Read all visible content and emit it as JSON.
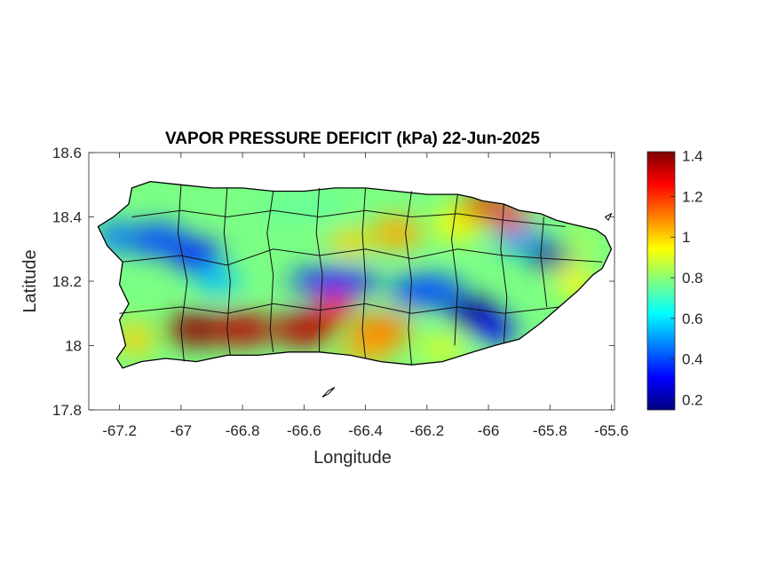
{
  "title": "VAPOR PRESSURE DEFICIT (kPa) 22-Jun-2025",
  "xlabel": "Longitude",
  "ylabel": "Latitude",
  "xlim": [
    -67.3,
    -65.59
  ],
  "ylim": [
    17.8,
    18.6
  ],
  "xticks": [
    {
      "value": -67.2,
      "label": "-67.2"
    },
    {
      "value": -67.0,
      "label": "-67"
    },
    {
      "value": -66.8,
      "label": "-66.8"
    },
    {
      "value": -66.6,
      "label": "-66.6"
    },
    {
      "value": -66.4,
      "label": "-66.4"
    },
    {
      "value": -66.2,
      "label": "-66.2"
    },
    {
      "value": -66.0,
      "label": "-66"
    },
    {
      "value": -65.8,
      "label": "-65.8"
    },
    {
      "value": -65.6,
      "label": "-65.6"
    }
  ],
  "yticks": [
    {
      "value": 18.6,
      "label": "18.6"
    },
    {
      "value": 18.4,
      "label": "18.4"
    },
    {
      "value": 18.2,
      "label": "18.2"
    },
    {
      "value": 18.0,
      "label": "18"
    },
    {
      "value": 17.8,
      "label": "17.8"
    }
  ],
  "colorbar": {
    "colormap": "jet",
    "range": [
      0.15,
      1.42
    ],
    "ticks": [
      {
        "value": 1.4,
        "label": "1.4"
      },
      {
        "value": 1.2,
        "label": "1.2"
      },
      {
        "value": 1.0,
        "label": "1"
      },
      {
        "value": 0.8,
        "label": "0.8"
      },
      {
        "value": 0.6,
        "label": "0.6"
      },
      {
        "value": 0.4,
        "label": "0.4"
      },
      {
        "value": 0.2,
        "label": "0.2"
      }
    ]
  },
  "map_data": {
    "region": "Puerto Rico",
    "background_value": 0.78,
    "coast": [
      [
        -67.27,
        18.37
      ],
      [
        -67.22,
        18.4
      ],
      [
        -67.17,
        18.44
      ],
      [
        -67.16,
        18.49
      ],
      [
        -67.1,
        18.51
      ],
      [
        -67.0,
        18.5
      ],
      [
        -66.9,
        18.49
      ],
      [
        -66.8,
        18.49
      ],
      [
        -66.7,
        18.48
      ],
      [
        -66.6,
        18.48
      ],
      [
        -66.5,
        18.49
      ],
      [
        -66.4,
        18.49
      ],
      [
        -66.3,
        18.48
      ],
      [
        -66.2,
        18.47
      ],
      [
        -66.1,
        18.47
      ],
      [
        -66.05,
        18.46
      ],
      [
        -66.02,
        18.45
      ],
      [
        -65.95,
        18.44
      ],
      [
        -65.9,
        18.42
      ],
      [
        -65.83,
        18.41
      ],
      [
        -65.78,
        18.39
      ],
      [
        -65.74,
        18.38
      ],
      [
        -65.65,
        18.36
      ],
      [
        -65.62,
        18.34
      ],
      [
        -65.6,
        18.3
      ],
      [
        -65.63,
        18.24
      ],
      [
        -65.66,
        18.22
      ],
      [
        -65.71,
        18.17
      ],
      [
        -65.77,
        18.12
      ],
      [
        -65.83,
        18.07
      ],
      [
        -65.9,
        18.02
      ],
      [
        -65.98,
        18.0
      ],
      [
        -66.05,
        17.98
      ],
      [
        -66.15,
        17.95
      ],
      [
        -66.25,
        17.94
      ],
      [
        -66.35,
        17.95
      ],
      [
        -66.45,
        17.97
      ],
      [
        -66.55,
        17.98
      ],
      [
        -66.65,
        17.98
      ],
      [
        -66.75,
        17.97
      ],
      [
        -66.85,
        17.97
      ],
      [
        -66.95,
        17.95
      ],
      [
        -67.05,
        17.96
      ],
      [
        -67.13,
        17.95
      ],
      [
        -67.19,
        17.93
      ],
      [
        -67.21,
        17.96
      ],
      [
        -67.18,
        18.0
      ],
      [
        -67.2,
        18.08
      ],
      [
        -67.17,
        18.13
      ],
      [
        -67.2,
        18.19
      ],
      [
        -67.19,
        18.26
      ],
      [
        -67.24,
        18.31
      ],
      [
        -67.27,
        18.37
      ]
    ],
    "islands": [
      [
        [
          -66.54,
          17.84
        ],
        [
          -66.52,
          17.86
        ],
        [
          -66.5,
          17.87
        ],
        [
          -66.52,
          17.85
        ]
      ],
      [
        [
          -65.62,
          18.4
        ],
        [
          -65.6,
          18.41
        ],
        [
          -65.61,
          18.39
        ]
      ]
    ],
    "municipal_boundaries": [
      [
        [
          -67.0,
          18.5
        ],
        [
          -67.01,
          18.35
        ],
        [
          -66.98,
          18.2
        ],
        [
          -67.0,
          18.05
        ],
        [
          -66.99,
          17.95
        ]
      ],
      [
        [
          -66.85,
          18.49
        ],
        [
          -66.86,
          18.35
        ],
        [
          -66.84,
          18.2
        ],
        [
          -66.85,
          18.05
        ],
        [
          -66.84,
          17.97
        ]
      ],
      [
        [
          -66.7,
          18.48
        ],
        [
          -66.72,
          18.35
        ],
        [
          -66.7,
          18.22
        ],
        [
          -66.71,
          18.05
        ],
        [
          -66.7,
          17.98
        ]
      ],
      [
        [
          -66.55,
          18.49
        ],
        [
          -66.56,
          18.35
        ],
        [
          -66.54,
          18.22
        ],
        [
          -66.55,
          18.05
        ],
        [
          -66.55,
          17.98
        ]
      ],
      [
        [
          -66.4,
          18.49
        ],
        [
          -66.41,
          18.35
        ],
        [
          -66.4,
          18.2
        ],
        [
          -66.41,
          18.05
        ],
        [
          -66.4,
          17.96
        ]
      ],
      [
        [
          -66.25,
          18.48
        ],
        [
          -66.27,
          18.35
        ],
        [
          -66.25,
          18.2
        ],
        [
          -66.26,
          18.05
        ],
        [
          -66.25,
          17.94
        ]
      ],
      [
        [
          -66.1,
          18.47
        ],
        [
          -66.12,
          18.33
        ],
        [
          -66.1,
          18.18
        ],
        [
          -66.11,
          18.0
        ]
      ],
      [
        [
          -65.95,
          18.44
        ],
        [
          -65.96,
          18.3
        ],
        [
          -65.94,
          18.15
        ],
        [
          -65.95,
          18.01
        ]
      ],
      [
        [
          -65.82,
          18.4
        ],
        [
          -65.83,
          18.28
        ],
        [
          -65.81,
          18.12
        ]
      ],
      [
        [
          -67.19,
          18.26
        ],
        [
          -67.0,
          18.28
        ],
        [
          -66.85,
          18.25
        ],
        [
          -66.7,
          18.3
        ],
        [
          -66.55,
          18.28
        ],
        [
          -66.4,
          18.3
        ],
        [
          -66.25,
          18.27
        ],
        [
          -66.1,
          18.3
        ],
        [
          -65.95,
          18.28
        ],
        [
          -65.8,
          18.27
        ],
        [
          -65.63,
          18.26
        ]
      ],
      [
        [
          -67.2,
          18.1
        ],
        [
          -67.0,
          18.12
        ],
        [
          -66.85,
          18.1
        ],
        [
          -66.7,
          18.13
        ],
        [
          -66.55,
          18.11
        ],
        [
          -66.4,
          18.13
        ],
        [
          -66.25,
          18.1
        ],
        [
          -66.1,
          18.12
        ],
        [
          -65.95,
          18.1
        ],
        [
          -65.77,
          18.12
        ]
      ],
      [
        [
          -67.16,
          18.4
        ],
        [
          -67.0,
          18.42
        ],
        [
          -66.85,
          18.4
        ],
        [
          -66.7,
          18.42
        ],
        [
          -66.55,
          18.4
        ],
        [
          -66.4,
          18.42
        ],
        [
          -66.25,
          18.4
        ],
        [
          -66.1,
          18.41
        ],
        [
          -65.95,
          18.39
        ],
        [
          -65.75,
          18.37
        ]
      ]
    ],
    "vpd_field": [
      {
        "lon": -67.22,
        "lat": 18.34,
        "value": 0.45,
        "rlon": 0.05,
        "rlat": 0.05
      },
      {
        "lon": -67.08,
        "lat": 18.33,
        "value": 0.4,
        "rlon": 0.1,
        "rlat": 0.05
      },
      {
        "lon": -66.95,
        "lat": 18.28,
        "value": 0.35,
        "rlon": 0.08,
        "rlat": 0.05
      },
      {
        "lon": -66.88,
        "lat": 18.2,
        "value": 0.55,
        "rlon": 0.07,
        "rlat": 0.04
      },
      {
        "lon": -66.5,
        "lat": 18.2,
        "value": 0.35,
        "rlon": 0.15,
        "rlat": 0.04
      },
      {
        "lon": -66.2,
        "lat": 18.17,
        "value": 0.4,
        "rlon": 0.12,
        "rlat": 0.05
      },
      {
        "lon": -66.05,
        "lat": 18.1,
        "value": 0.18,
        "rlon": 0.08,
        "rlat": 0.05
      },
      {
        "lon": -65.98,
        "lat": 18.05,
        "value": 0.3,
        "rlon": 0.07,
        "rlat": 0.04
      },
      {
        "lon": -65.8,
        "lat": 18.28,
        "value": 0.18,
        "rlon": 0.07,
        "rlat": 0.04
      },
      {
        "lon": -65.9,
        "lat": 18.33,
        "value": 0.5,
        "rlon": 0.08,
        "rlat": 0.04
      },
      {
        "lon": -66.1,
        "lat": 18.38,
        "value": 0.95,
        "rlon": 0.08,
        "rlat": 0.05
      },
      {
        "lon": -66.3,
        "lat": 18.35,
        "value": 1.05,
        "rlon": 0.08,
        "rlat": 0.05
      },
      {
        "lon": -66.45,
        "lat": 18.32,
        "value": 1.0,
        "rlon": 0.07,
        "rlat": 0.04
      },
      {
        "lon": -66.02,
        "lat": 18.43,
        "value": 1.3,
        "rlon": 0.07,
        "rlat": 0.04
      },
      {
        "lon": -65.93,
        "lat": 18.4,
        "value": 1.2,
        "rlon": 0.06,
        "rlat": 0.04
      },
      {
        "lon": -66.6,
        "lat": 18.43,
        "value": 0.75,
        "rlon": 0.15,
        "rlat": 0.04
      },
      {
        "lon": -66.95,
        "lat": 18.05,
        "value": 1.4,
        "rlon": 0.1,
        "rlat": 0.05
      },
      {
        "lon": -66.8,
        "lat": 18.05,
        "value": 1.35,
        "rlon": 0.1,
        "rlat": 0.05
      },
      {
        "lon": -66.6,
        "lat": 18.05,
        "value": 1.35,
        "rlon": 0.1,
        "rlat": 0.05
      },
      {
        "lon": -66.5,
        "lat": 18.12,
        "value": 1.25,
        "rlon": 0.06,
        "rlat": 0.04
      },
      {
        "lon": -66.35,
        "lat": 18.05,
        "value": 1.1,
        "rlon": 0.1,
        "rlat": 0.05
      },
      {
        "lon": -66.4,
        "lat": 17.98,
        "value": 1.05,
        "rlon": 0.1,
        "rlat": 0.03
      },
      {
        "lon": -67.15,
        "lat": 18.02,
        "value": 1.0,
        "rlon": 0.06,
        "rlat": 0.05
      },
      {
        "lon": -66.15,
        "lat": 17.99,
        "value": 0.9,
        "rlon": 0.08,
        "rlat": 0.04
      },
      {
        "lon": -65.72,
        "lat": 18.2,
        "value": 0.95,
        "rlon": 0.06,
        "rlat": 0.05
      },
      {
        "lon": -65.7,
        "lat": 18.32,
        "value": 0.85,
        "rlon": 0.05,
        "rlat": 0.04
      }
    ]
  }
}
